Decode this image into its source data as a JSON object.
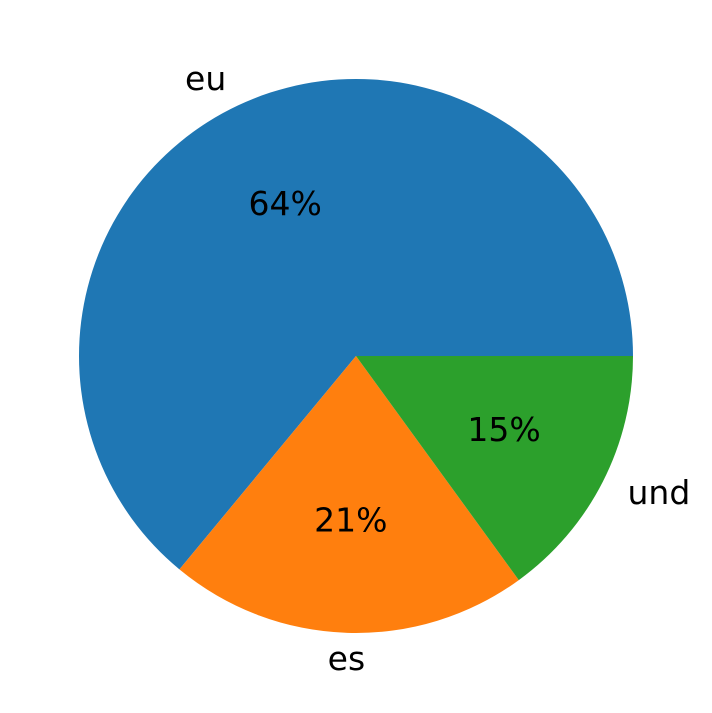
{
  "chart_data": {
    "type": "pie",
    "start_angle_deg": 0,
    "direction": "counterclockwise",
    "slices": [
      {
        "label": "eu",
        "value": 64,
        "pct_label": "64%",
        "color": "#1f77b4"
      },
      {
        "label": "es",
        "value": 21,
        "pct_label": "21%",
        "color": "#ff7f0e"
      },
      {
        "label": "und",
        "value": 15,
        "pct_label": "15%",
        "color": "#2ca02c"
      }
    ],
    "legend": "none"
  }
}
